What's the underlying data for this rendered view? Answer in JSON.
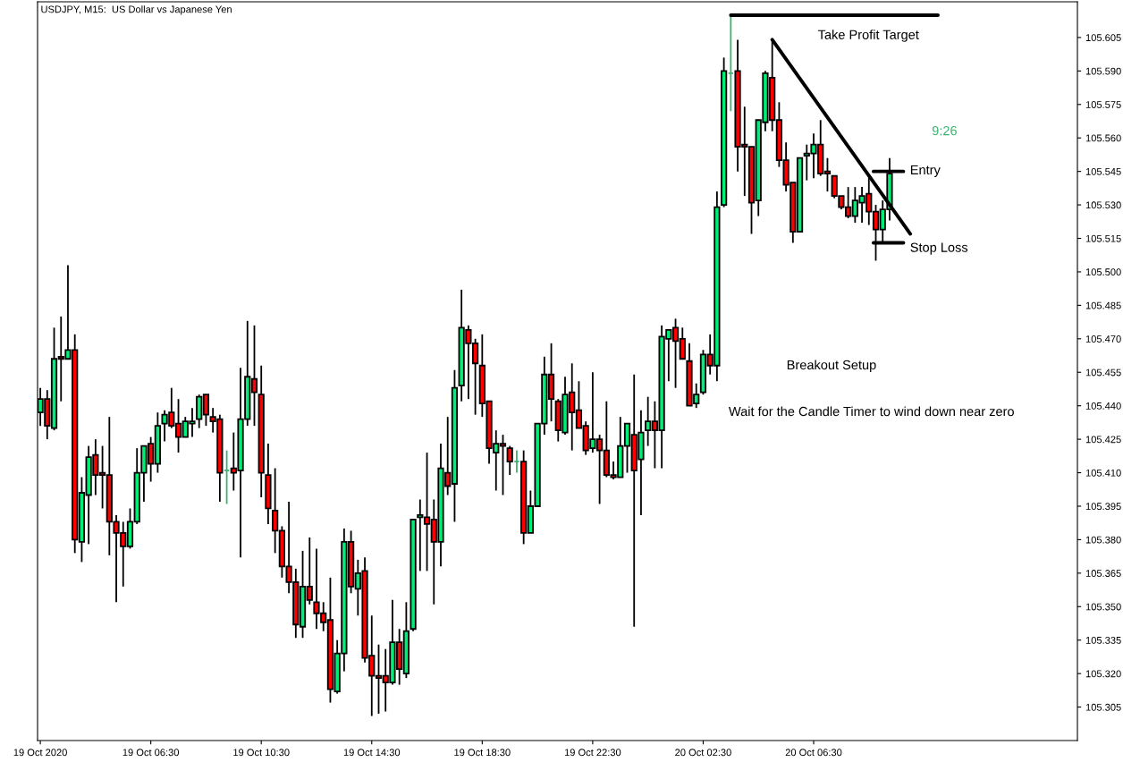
{
  "chart_data": {
    "type": "candlestick",
    "title": "USDJPY, M15:  US Dollar vs Japanese Yen",
    "x": [
      "2020-10-19T02:30",
      "2020-10-19T02:45",
      "2020-10-19T03:00",
      "2020-10-19T03:15",
      "2020-10-19T03:30",
      "2020-10-19T03:45",
      "2020-10-19T04:00",
      "2020-10-19T04:15",
      "2020-10-19T04:30",
      "2020-10-19T04:45",
      "2020-10-19T05:00",
      "2020-10-19T05:15",
      "2020-10-19T05:30",
      "2020-10-19T05:45",
      "2020-10-19T06:00",
      "2020-10-19T06:15",
      "2020-10-19T06:30",
      "2020-10-19T06:45",
      "2020-10-19T07:00",
      "2020-10-19T07:15",
      "2020-10-19T07:30",
      "2020-10-19T07:45",
      "2020-10-19T08:00",
      "2020-10-19T08:15",
      "2020-10-19T08:30",
      "2020-10-19T08:45",
      "2020-10-19T09:00",
      "2020-10-19T09:15",
      "2020-10-19T09:30",
      "2020-10-19T09:45",
      "2020-10-19T10:00",
      "2020-10-19T10:15",
      "2020-10-19T10:30",
      "2020-10-19T10:45",
      "2020-10-19T11:00",
      "2020-10-19T11:15",
      "2020-10-19T11:30",
      "2020-10-19T11:45",
      "2020-10-19T12:00",
      "2020-10-19T12:15",
      "2020-10-19T12:30",
      "2020-10-19T12:45",
      "2020-10-19T13:00",
      "2020-10-19T13:15",
      "2020-10-19T13:30",
      "2020-10-19T13:45",
      "2020-10-19T14:00",
      "2020-10-19T14:15",
      "2020-10-19T14:30",
      "2020-10-19T14:45",
      "2020-10-19T15:00",
      "2020-10-19T15:15",
      "2020-10-19T15:30",
      "2020-10-19T15:45",
      "2020-10-19T16:00",
      "2020-10-19T16:15",
      "2020-10-19T16:30",
      "2020-10-19T16:45",
      "2020-10-19T17:00",
      "2020-10-19T17:15",
      "2020-10-19T17:30",
      "2020-10-19T17:45",
      "2020-10-19T18:00",
      "2020-10-19T18:15",
      "2020-10-19T18:30",
      "2020-10-19T18:45",
      "2020-10-19T19:00",
      "2020-10-19T19:15",
      "2020-10-19T19:30",
      "2020-10-19T19:45",
      "2020-10-19T20:00",
      "2020-10-19T20:15",
      "2020-10-19T20:30",
      "2020-10-19T20:45",
      "2020-10-19T21:00",
      "2020-10-19T21:15",
      "2020-10-19T21:30",
      "2020-10-19T21:45",
      "2020-10-19T22:00",
      "2020-10-19T22:15",
      "2020-10-19T22:30",
      "2020-10-19T22:45",
      "2020-10-19T23:00",
      "2020-10-19T23:15",
      "2020-10-19T23:30",
      "2020-10-19T23:45",
      "2020-10-20T00:00",
      "2020-10-20T00:15",
      "2020-10-20T00:30",
      "2020-10-20T00:45",
      "2020-10-20T01:00",
      "2020-10-20T01:15",
      "2020-10-20T01:30",
      "2020-10-20T01:45",
      "2020-10-20T02:00",
      "2020-10-20T02:15",
      "2020-10-20T02:30",
      "2020-10-20T02:45",
      "2020-10-20T03:00",
      "2020-10-20T03:15",
      "2020-10-20T03:30",
      "2020-10-20T03:45",
      "2020-10-20T04:00",
      "2020-10-20T04:15",
      "2020-10-20T04:30",
      "2020-10-20T04:45",
      "2020-10-20T05:00",
      "2020-10-20T05:15",
      "2020-10-20T05:30",
      "2020-10-20T05:45",
      "2020-10-20T06:00",
      "2020-10-20T06:15",
      "2020-10-20T06:30",
      "2020-10-20T06:45",
      "2020-10-20T07:00",
      "2020-10-20T07:15",
      "2020-10-20T07:30",
      "2020-10-20T07:45",
      "2020-10-20T08:00",
      "2020-10-20T08:15",
      "2020-10-20T08:30",
      "2020-10-20T08:45",
      "2020-10-20T09:00",
      "2020-10-20T09:15"
    ],
    "ohlc": [
      [
        105.437,
        105.448,
        105.431,
        105.443
      ],
      [
        105.443,
        105.447,
        105.425,
        105.431
      ],
      [
        105.43,
        105.475,
        105.429,
        105.461
      ],
      [
        105.462,
        105.48,
        105.442,
        105.461
      ],
      [
        105.461,
        105.503,
        105.461,
        105.465
      ],
      [
        105.465,
        105.472,
        105.374,
        105.38
      ],
      [
        105.379,
        105.408,
        105.37,
        105.401
      ],
      [
        105.4,
        105.422,
        105.378,
        105.417
      ],
      [
        105.418,
        105.425,
        105.4,
        105.409
      ],
      [
        105.41,
        105.422,
        105.394,
        105.409
      ],
      [
        105.409,
        105.435,
        105.373,
        105.388
      ],
      [
        105.388,
        105.391,
        105.352,
        105.383
      ],
      [
        105.383,
        105.388,
        105.359,
        105.377
      ],
      [
        105.377,
        105.394,
        105.376,
        105.388
      ],
      [
        105.388,
        105.421,
        105.387,
        105.41
      ],
      [
        105.41,
        105.422,
        105.397,
        105.422
      ],
      [
        105.423,
        105.426,
        105.406,
        105.414
      ],
      [
        105.414,
        105.437,
        105.41,
        105.431
      ],
      [
        105.432,
        105.438,
        105.424,
        105.436
      ],
      [
        105.437,
        105.448,
        105.43,
        105.431
      ],
      [
        105.432,
        105.443,
        105.419,
        105.426
      ],
      [
        105.426,
        105.435,
        105.426,
        105.433
      ],
      [
        105.432,
        105.439,
        105.426,
        105.433
      ],
      [
        105.434,
        105.445,
        105.43,
        105.444
      ],
      [
        105.445,
        105.445,
        105.431,
        105.436
      ],
      [
        105.435,
        105.439,
        105.428,
        105.433
      ],
      [
        105.434,
        105.436,
        105.397,
        105.41
      ],
      [
        105.411,
        105.42,
        105.396,
        105.411
      ],
      [
        105.412,
        105.428,
        105.402,
        105.41
      ],
      [
        105.411,
        105.457,
        105.372,
        105.434
      ],
      [
        105.434,
        105.478,
        105.431,
        105.453
      ],
      [
        105.452,
        105.476,
        105.431,
        105.446
      ],
      [
        105.445,
        105.458,
        105.399,
        105.41
      ],
      [
        105.409,
        105.423,
        105.387,
        105.394
      ],
      [
        105.393,
        105.412,
        105.374,
        105.384
      ],
      [
        105.384,
        105.386,
        105.363,
        105.368
      ],
      [
        105.368,
        105.397,
        105.356,
        105.361
      ],
      [
        105.361,
        105.367,
        105.336,
        105.342
      ],
      [
        105.341,
        105.375,
        105.336,
        105.359
      ],
      [
        105.359,
        105.381,
        105.351,
        105.353
      ],
      [
        105.352,
        105.376,
        105.34,
        105.347
      ],
      [
        105.347,
        105.352,
        105.339,
        105.343
      ],
      [
        105.344,
        105.363,
        105.307,
        105.313
      ],
      [
        105.312,
        105.335,
        105.311,
        105.329
      ],
      [
        105.329,
        105.385,
        105.321,
        105.379
      ],
      [
        105.379,
        105.384,
        105.356,
        105.359
      ],
      [
        105.358,
        105.371,
        105.346,
        105.365
      ],
      [
        105.366,
        105.372,
        105.325,
        105.327
      ],
      [
        105.328,
        105.346,
        105.301,
        105.319
      ],
      [
        105.319,
        105.333,
        105.302,
        105.318
      ],
      [
        105.319,
        105.331,
        105.303,
        105.316
      ],
      [
        105.316,
        105.353,
        105.315,
        105.334
      ],
      [
        105.334,
        105.34,
        105.315,
        105.322
      ],
      [
        105.32,
        105.352,
        105.318,
        105.339
      ],
      [
        105.34,
        105.389,
        105.339,
        105.389
      ],
      [
        105.39,
        105.398,
        105.366,
        105.391
      ],
      [
        105.39,
        105.419,
        105.366,
        105.387
      ],
      [
        105.389,
        105.398,
        105.351,
        105.379
      ],
      [
        105.379,
        105.423,
        105.368,
        105.412
      ],
      [
        105.41,
        105.435,
        105.4,
        105.404
      ],
      [
        105.405,
        105.456,
        105.388,
        105.448
      ],
      [
        105.449,
        105.492,
        105.442,
        105.475
      ],
      [
        105.474,
        105.476,
        105.443,
        105.468
      ],
      [
        105.468,
        105.47,
        105.436,
        105.459
      ],
      [
        105.458,
        105.472,
        105.435,
        105.441
      ],
      [
        105.442,
        105.442,
        105.414,
        105.421
      ],
      [
        105.419,
        105.429,
        105.402,
        105.423
      ],
      [
        105.423,
        105.427,
        105.4,
        105.422
      ],
      [
        105.421,
        105.422,
        105.409,
        105.415
      ],
      [
        105.415,
        105.42,
        105.41,
        105.415
      ],
      [
        105.415,
        105.42,
        105.378,
        105.383
      ],
      [
        105.383,
        105.402,
        105.383,
        105.395
      ],
      [
        105.395,
        105.432,
        105.395,
        105.432
      ],
      [
        105.432,
        105.462,
        105.427,
        105.454
      ],
      [
        105.454,
        105.468,
        105.433,
        105.443
      ],
      [
        105.442,
        105.443,
        105.424,
        105.429
      ],
      [
        105.428,
        105.453,
        105.427,
        105.445
      ],
      [
        105.446,
        105.459,
        105.42,
        105.437
      ],
      [
        105.438,
        105.451,
        105.43,
        105.43
      ],
      [
        105.431,
        105.433,
        105.418,
        105.42
      ],
      [
        105.421,
        105.455,
        105.419,
        105.425
      ],
      [
        105.425,
        105.427,
        105.396,
        105.42
      ],
      [
        105.42,
        105.442,
        105.408,
        105.409
      ],
      [
        105.409,
        105.415,
        105.407,
        105.408
      ],
      [
        105.408,
        105.435,
        105.408,
        105.422
      ],
      [
        105.422,
        105.432,
        105.41,
        105.432
      ],
      [
        105.427,
        105.454,
        105.341,
        105.411
      ],
      [
        105.416,
        105.438,
        105.391,
        105.428
      ],
      [
        105.429,
        105.444,
        105.422,
        105.433
      ],
      [
        105.433,
        105.442,
        105.412,
        105.429
      ],
      [
        105.429,
        105.476,
        105.412,
        105.471
      ],
      [
        105.47,
        105.474,
        105.451,
        105.474
      ],
      [
        105.475,
        105.479,
        105.448,
        105.469
      ],
      [
        105.47,
        105.475,
        105.461,
        105.461
      ],
      [
        105.46,
        105.468,
        105.44,
        105.44
      ],
      [
        105.441,
        105.45,
        105.439,
        105.445
      ],
      [
        105.446,
        105.465,
        105.445,
        105.463
      ],
      [
        105.463,
        105.472,
        105.454,
        105.458
      ],
      [
        105.458,
        105.536,
        105.451,
        105.529
      ],
      [
        105.53,
        105.596,
        105.529,
        105.59
      ],
      [
        105.589,
        105.615,
        105.572,
        105.589
      ],
      [
        105.59,
        105.604,
        105.545,
        105.556
      ],
      [
        105.557,
        105.574,
        105.534,
        105.556
      ],
      [
        105.556,
        105.556,
        105.517,
        105.531
      ],
      [
        105.532,
        105.568,
        105.525,
        105.568
      ],
      [
        105.567,
        105.59,
        105.563,
        105.589
      ],
      [
        105.587,
        105.604,
        105.563,
        105.568
      ],
      [
        105.568,
        105.576,
        105.547,
        105.55
      ],
      [
        105.55,
        105.558,
        105.536,
        105.539
      ],
      [
        105.54,
        105.54,
        105.513,
        105.518
      ],
      [
        105.518,
        105.551,
        105.518,
        105.551
      ],
      [
        105.552,
        105.557,
        105.541,
        105.553
      ],
      [
        105.553,
        105.562,
        105.542,
        105.557
      ],
      [
        105.557,
        105.568,
        105.543,
        105.544
      ],
      [
        105.545,
        105.551,
        105.536,
        105.544
      ],
      [
        105.543,
        105.543,
        105.533,
        105.534
      ],
      [
        105.534,
        105.534,
        105.528,
        105.529
      ],
      [
        105.529,
        105.538,
        105.524,
        105.525
      ],
      [
        105.525,
        105.538,
        105.522,
        105.532
      ],
      [
        105.531,
        105.538,
        105.522,
        105.534
      ],
      [
        105.535,
        105.543,
        105.521,
        105.527
      ],
      [
        105.527,
        105.53,
        105.505,
        105.519
      ],
      [
        105.519,
        105.532,
        105.513,
        105.528
      ],
      [
        105.528,
        105.551,
        105.523,
        105.544
      ]
    ],
    "colors": [
      "#00ee77",
      "#ff0000",
      "#00ee77",
      "#ff0000",
      "#00ee77",
      "#ff0000",
      "#00ee77",
      "#00ee77",
      "#ff0000",
      "#ff0000",
      "#ff0000",
      "#ff0000",
      "#ff0000",
      "#00ee77",
      "#00ee77",
      "#00ee77",
      "#ff0000",
      "#00ee77",
      "#00ee77",
      "#ff0000",
      "#ff0000",
      "#00ee77",
      "#00ee77",
      "#00ee77",
      "#ff0000",
      "#ff0000",
      "#ff0000",
      "#3cb371",
      "#ff0000",
      "#00ee77",
      "#00ee77",
      "#ff0000",
      "#ff0000",
      "#ff0000",
      "#ff0000",
      "#ff0000",
      "#ff0000",
      "#ff0000",
      "#00ee77",
      "#ff0000",
      "#ff0000",
      "#ff0000",
      "#ff0000",
      "#00ee77",
      "#00ee77",
      "#ff0000",
      "#00ee77",
      "#ff0000",
      "#ff0000",
      "#ff0000",
      "#ff0000",
      "#00ee77",
      "#ff0000",
      "#00ee77",
      "#00ee77",
      "#00ee77",
      "#ff0000",
      "#ff0000",
      "#00ee77",
      "#ff0000",
      "#00ee77",
      "#00ee77",
      "#ff0000",
      "#ff0000",
      "#ff0000",
      "#ff0000",
      "#00ee77",
      "#ff0000",
      "#ff0000",
      "#3cb371",
      "#ff0000",
      "#00ee77",
      "#00ee77",
      "#00ee77",
      "#ff0000",
      "#ff0000",
      "#00ee77",
      "#ff0000",
      "#ff0000",
      "#ff0000",
      "#00ee77",
      "#ff0000",
      "#ff0000",
      "#ff0000",
      "#00ee77",
      "#00ee77",
      "#ff0000",
      "#00ee77",
      "#00ee77",
      "#ff0000",
      "#00ee77",
      "#00ee77",
      "#ff0000",
      "#ff0000",
      "#ff0000",
      "#00ee77",
      "#00ee77",
      "#ff0000",
      "#00ee77",
      "#00ee77",
      "#3cb371",
      "#ff0000",
      "#ff0000",
      "#ff0000",
      "#00ee77",
      "#00ee77",
      "#ff0000",
      "#ff0000",
      "#ff0000",
      "#ff0000",
      "#00ee77",
      "#00ee77",
      "#00ee77",
      "#ff0000",
      "#ff0000",
      "#ff0000",
      "#ff0000",
      "#ff0000",
      "#00ee77",
      "#00ee77",
      "#ff0000",
      "#ff0000",
      "#00ee77",
      "#00ee77"
    ],
    "series": [
      {
        "type": "line",
        "x": [
          "2020-10-20T03:30",
          "2020-10-20T11:00"
        ],
        "values": [
          105.615,
          105.615
        ],
        "color": "#000000"
      },
      {
        "type": "line",
        "x": [
          "2020-10-20T05:00",
          "2020-10-20T10:00"
        ],
        "values": [
          105.604,
          105.517
        ],
        "color": "#000000"
      },
      {
        "type": "line",
        "x": [
          "2020-10-20T08:40",
          "2020-10-20T09:45"
        ],
        "values": [
          105.545,
          105.545
        ],
        "color": "#000000"
      },
      {
        "type": "line",
        "x": [
          "2020-10-20T08:40",
          "2020-10-20T09:45"
        ],
        "values": [
          105.513,
          105.513
        ],
        "color": "#000000"
      }
    ],
    "annotations": [
      "Take Profit Target",
      "Entry",
      "Stop Loss",
      "9:26",
      "Breakout Setup",
      "Wait for the Candle Timer to wind down near zero"
    ],
    "xlim": [
      "2020-10-19T02:24",
      "2020-10-20T16:03"
    ],
    "xticks": [
      {
        "value": "2020-10-19T02:30",
        "label": "19 Oct 2020"
      },
      {
        "value": "2020-10-19T06:30",
        "label": "19 Oct 06:30"
      },
      {
        "value": "2020-10-19T10:30",
        "label": "19 Oct 10:30"
      },
      {
        "value": "2020-10-19T14:30",
        "label": "19 Oct 14:30"
      },
      {
        "value": "2020-10-19T18:30",
        "label": "19 Oct 18:30"
      },
      {
        "value": "2020-10-19T22:30",
        "label": "19 Oct 22:30"
      },
      {
        "value": "2020-10-20T02:30",
        "label": "20 Oct 02:30"
      },
      {
        "value": "2020-10-20T06:30",
        "label": "20 Oct 06:30"
      }
    ],
    "ylim": [
      105.29,
      105.621
    ],
    "yticks": [
      105.305,
      {
        "value": 105.32,
        "label": "105.320"
      },
      105.335,
      {
        "value": 105.35,
        "label": "105.350"
      },
      105.365,
      {
        "value": 105.38,
        "label": "105.380"
      },
      105.395,
      {
        "value": 105.41,
        "label": "105.410"
      },
      105.425,
      {
        "value": 105.44,
        "label": "105.440"
      },
      105.455,
      {
        "value": 105.47,
        "label": "105.470"
      },
      105.485,
      {
        "value": 105.5,
        "label": "105.500"
      },
      105.515,
      {
        "value": 105.53,
        "label": "105.530"
      },
      105.545,
      {
        "value": 105.56,
        "label": "105.560"
      },
      105.575,
      {
        "value": 105.59,
        "label": "105.590"
      },
      105.605
    ],
    "grid": false,
    "legend": false
  }
}
